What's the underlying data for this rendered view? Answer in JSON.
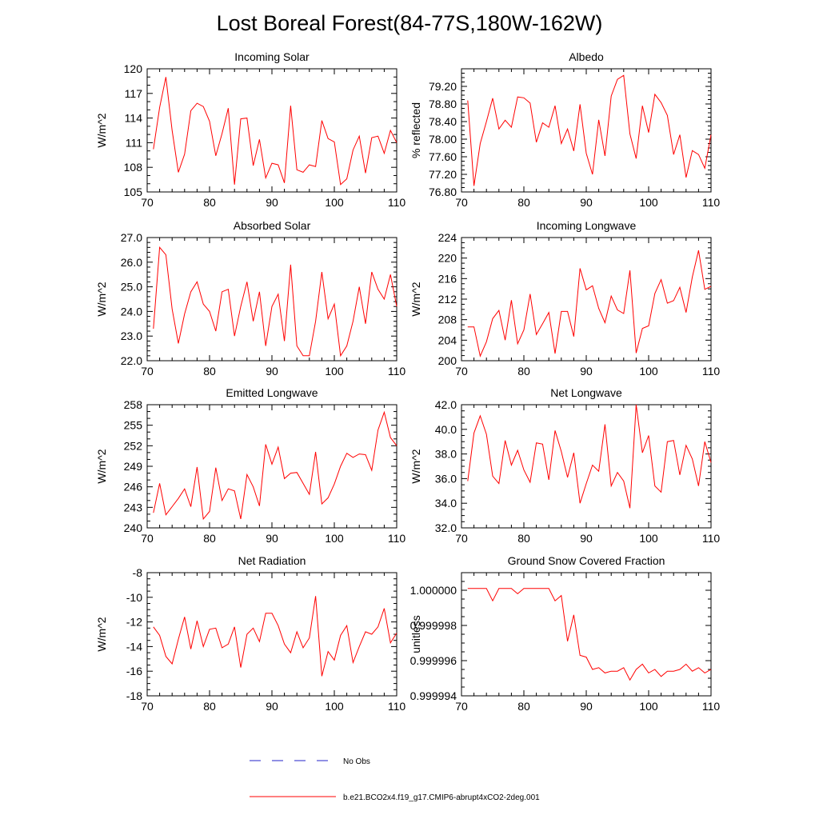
{
  "title": "Lost Boreal Forest(84-77S,180W-162W)",
  "colors": {
    "model": "#ff0000",
    "obs": "#2020c8",
    "axis": "#000000"
  },
  "legend": [
    {
      "label": "No Obs",
      "style": "dashed",
      "color": "#2020c8"
    },
    {
      "label": "b.e21.BCO2x4.f19_g17.CMIP6-abrupt4xCO2-2deg.001",
      "style": "solid",
      "color": "#ff0000"
    }
  ],
  "chart_data": [
    {
      "type": "line",
      "title": "Incoming Solar",
      "xlabel": "",
      "ylabel": "W/m^2",
      "xlim": [
        70,
        110
      ],
      "ylim": [
        105,
        120
      ],
      "xticks": [
        70,
        80,
        90,
        100,
        110
      ],
      "xtick_labels": [
        "70",
        "80",
        "90",
        "100",
        "110"
      ],
      "yticks": [
        105,
        108,
        111,
        114,
        117,
        120
      ],
      "ytick_labels": [
        "105",
        "108",
        "111",
        "114",
        "117",
        "120"
      ],
      "yminor": 1,
      "series": [
        {
          "name": "b.e21.BCO2x4.f19_g17.CMIP6-abrupt4xCO2-2deg.001",
          "x": [
            71,
            72,
            73,
            74,
            75,
            76,
            77,
            78,
            79,
            80,
            81,
            82,
            83,
            84,
            85,
            86,
            87,
            88,
            89,
            90,
            91,
            92,
            93,
            94,
            95,
            96,
            97,
            98,
            99,
            100,
            101,
            102,
            103,
            104,
            105,
            106,
            107,
            108,
            109,
            110
          ],
          "values": [
            110.2,
            115.3,
            119.0,
            112.5,
            107.4,
            109.6,
            114.9,
            115.8,
            115.4,
            113.6,
            109.4,
            112.1,
            115.2,
            105.9,
            113.9,
            114.0,
            108.2,
            111.4,
            106.7,
            108.5,
            108.3,
            106.1,
            115.5,
            107.7,
            107.4,
            108.3,
            108.1,
            113.7,
            111.5,
            111.1,
            105.9,
            106.6,
            110.1,
            111.8,
            107.3,
            111.6,
            111.8,
            109.7,
            112.5,
            111.0
          ]
        }
      ]
    },
    {
      "type": "line",
      "title": "Albedo",
      "xlabel": "",
      "ylabel": "% reflected",
      "xlim": [
        70,
        110
      ],
      "ylim": [
        76.8,
        79.6
      ],
      "xticks": [
        70,
        80,
        90,
        100,
        110
      ],
      "xtick_labels": [
        "70",
        "80",
        "90",
        "100",
        "110"
      ],
      "yticks": [
        76.8,
        77.2,
        77.6,
        78.0,
        78.4,
        78.8,
        79.2
      ],
      "ytick_labels": [
        "76.80",
        "77.20",
        "77.60",
        "78.00",
        "78.40",
        "78.80",
        "79.20"
      ],
      "yminor": 0.1,
      "series": [
        {
          "name": "b.e21.BCO2x4.f19_g17.CMIP6-abrupt4xCO2-2deg.001",
          "x": [
            71,
            72,
            73,
            74,
            75,
            76,
            77,
            78,
            79,
            80,
            81,
            82,
            83,
            84,
            85,
            86,
            87,
            88,
            89,
            90,
            91,
            92,
            93,
            94,
            95,
            96,
            97,
            98,
            99,
            100,
            101,
            102,
            103,
            104,
            105,
            106,
            107,
            108,
            109,
            110
          ],
          "values": [
            78.88,
            76.94,
            77.9,
            78.4,
            78.93,
            78.23,
            78.43,
            78.27,
            78.96,
            78.94,
            78.82,
            77.93,
            78.37,
            78.27,
            78.76,
            77.9,
            78.23,
            77.73,
            78.79,
            77.68,
            77.2,
            78.44,
            77.62,
            78.98,
            79.36,
            79.45,
            78.12,
            77.56,
            78.76,
            78.15,
            79.02,
            78.83,
            78.54,
            77.65,
            78.1,
            77.13,
            77.74,
            77.65,
            77.34,
            78.1
          ]
        }
      ]
    },
    {
      "type": "line",
      "title": "Absorbed Solar",
      "xlabel": "",
      "ylabel": "W/m^2",
      "xlim": [
        70,
        110
      ],
      "ylim": [
        22.0,
        27.0
      ],
      "xticks": [
        70,
        80,
        90,
        100,
        110
      ],
      "xtick_labels": [
        "70",
        "80",
        "90",
        "100",
        "110"
      ],
      "yticks": [
        22,
        23,
        24,
        25,
        26,
        27
      ],
      "ytick_labels": [
        "22.0",
        "23.0",
        "24.0",
        "25.0",
        "26.0",
        "27.0"
      ],
      "yminor": 0.2,
      "series": [
        {
          "name": "b.e21.BCO2x4.f19_g17.CMIP6-abrupt4xCO2-2deg.001",
          "x": [
            71,
            72,
            73,
            74,
            75,
            76,
            77,
            78,
            79,
            80,
            81,
            82,
            83,
            84,
            85,
            86,
            87,
            88,
            89,
            90,
            91,
            92,
            93,
            94,
            95,
            96,
            97,
            98,
            99,
            100,
            101,
            102,
            103,
            104,
            105,
            106,
            107,
            108,
            109,
            110
          ],
          "values": [
            23.3,
            26.6,
            26.3,
            24.1,
            22.7,
            23.9,
            24.8,
            25.2,
            24.3,
            24.0,
            23.2,
            24.8,
            24.9,
            23.0,
            24.2,
            25.2,
            23.6,
            24.8,
            22.6,
            24.2,
            24.7,
            22.8,
            25.9,
            22.6,
            22.2,
            22.2,
            23.6,
            25.6,
            23.7,
            24.3,
            22.2,
            22.6,
            23.6,
            25.0,
            23.5,
            25.6,
            24.9,
            24.5,
            25.5,
            24.2
          ]
        }
      ]
    },
    {
      "type": "line",
      "title": "Incoming Longwave",
      "xlabel": "",
      "ylabel": "W/m^2",
      "xlim": [
        70,
        110
      ],
      "ylim": [
        200,
        224
      ],
      "xticks": [
        70,
        80,
        90,
        100,
        110
      ],
      "xtick_labels": [
        "70",
        "80",
        "90",
        "100",
        "110"
      ],
      "yticks": [
        200,
        204,
        208,
        212,
        216,
        220,
        224
      ],
      "ytick_labels": [
        "200",
        "204",
        "208",
        "212",
        "216",
        "220",
        "224"
      ],
      "yminor": 1,
      "series": [
        {
          "name": "b.e21.BCO2x4.f19_g17.CMIP6-abrupt4xCO2-2deg.001",
          "x": [
            71,
            72,
            73,
            74,
            75,
            76,
            77,
            78,
            79,
            80,
            81,
            82,
            83,
            84,
            85,
            86,
            87,
            88,
            89,
            90,
            91,
            92,
            93,
            94,
            95,
            96,
            97,
            98,
            99,
            100,
            101,
            102,
            103,
            104,
            105,
            106,
            107,
            108,
            109,
            110
          ],
          "values": [
            206.6,
            206.6,
            200.9,
            203.7,
            208.2,
            209.8,
            204.0,
            211.8,
            203.3,
            206.0,
            213.0,
            205.1,
            207.2,
            209.4,
            201.4,
            209.6,
            209.6,
            204.7,
            218.0,
            213.8,
            214.6,
            210.2,
            207.4,
            212.6,
            209.9,
            209.2,
            217.6,
            201.5,
            206.3,
            206.8,
            213.1,
            215.8,
            211.2,
            211.7,
            214.3,
            209.4,
            216.3,
            221.5,
            213.9,
            214.5
          ]
        }
      ]
    },
    {
      "type": "line",
      "title": "Emitted Longwave",
      "xlabel": "",
      "ylabel": "W/m^2",
      "xlim": [
        70,
        110
      ],
      "ylim": [
        240,
        258
      ],
      "xticks": [
        70,
        80,
        90,
        100,
        110
      ],
      "xtick_labels": [
        "70",
        "80",
        "90",
        "100",
        "110"
      ],
      "yticks": [
        240,
        243,
        246,
        249,
        252,
        255,
        258
      ],
      "ytick_labels": [
        "240",
        "243",
        "246",
        "249",
        "252",
        "255",
        "258"
      ],
      "yminor": 1,
      "series": [
        {
          "name": "b.e21.BCO2x4.f19_g17.CMIP6-abrupt4xCO2-2deg.001",
          "x": [
            71,
            72,
            73,
            74,
            75,
            76,
            77,
            78,
            79,
            80,
            81,
            82,
            83,
            84,
            85,
            86,
            87,
            88,
            89,
            90,
            91,
            92,
            93,
            94,
            95,
            96,
            97,
            98,
            99,
            100,
            101,
            102,
            103,
            104,
            105,
            106,
            107,
            108,
            109,
            110
          ],
          "values": [
            242.2,
            246.5,
            241.9,
            243.1,
            244.3,
            245.7,
            243.1,
            248.9,
            241.3,
            242.4,
            248.8,
            244.0,
            245.7,
            245.4,
            241.3,
            247.8,
            246.0,
            243.2,
            252.2,
            249.3,
            251.8,
            247.2,
            248.0,
            248.1,
            246.5,
            244.9,
            251.1,
            243.5,
            244.4,
            246.4,
            249.0,
            250.9,
            250.3,
            250.8,
            250.7,
            248.4,
            254.3,
            256.9,
            253.2,
            252.0
          ]
        }
      ]
    },
    {
      "type": "line",
      "title": "Net Longwave",
      "xlabel": "",
      "ylabel": "W/m^2",
      "xlim": [
        70,
        110
      ],
      "ylim": [
        32.0,
        42.0
      ],
      "xticks": [
        70,
        80,
        90,
        100,
        110
      ],
      "xtick_labels": [
        "70",
        "80",
        "90",
        "100",
        "110"
      ],
      "yticks": [
        32,
        34,
        36,
        38,
        40,
        42
      ],
      "ytick_labels": [
        "32.0",
        "34.0",
        "36.0",
        "38.0",
        "40.0",
        "42.0"
      ],
      "yminor": 0.5,
      "series": [
        {
          "name": "b.e21.BCO2x4.f19_g17.CMIP6-abrupt4xCO2-2deg.001",
          "x": [
            71,
            72,
            73,
            74,
            75,
            76,
            77,
            78,
            79,
            80,
            81,
            82,
            83,
            84,
            85,
            86,
            87,
            88,
            89,
            90,
            91,
            92,
            93,
            94,
            95,
            96,
            97,
            98,
            99,
            100,
            101,
            102,
            103,
            104,
            105,
            106,
            107,
            108,
            109,
            110
          ],
          "values": [
            35.8,
            39.7,
            41.1,
            39.6,
            36.2,
            35.6,
            39.1,
            37.1,
            38.3,
            36.7,
            35.7,
            38.9,
            38.8,
            35.9,
            39.9,
            38.2,
            36.1,
            38.1,
            34.0,
            35.6,
            37.1,
            36.6,
            40.4,
            35.4,
            36.5,
            35.8,
            33.6,
            42.0,
            38.1,
            39.5,
            35.4,
            34.9,
            39.0,
            39.1,
            36.3,
            38.7,
            37.6,
            35.4,
            39.0,
            37.3
          ]
        }
      ]
    },
    {
      "type": "line",
      "title": "Net Radiation",
      "xlabel": "",
      "ylabel": "W/m^2",
      "xlim": [
        70,
        110
      ],
      "ylim": [
        -18,
        -8
      ],
      "xticks": [
        70,
        80,
        90,
        100,
        110
      ],
      "xtick_labels": [
        "70",
        "80",
        "90",
        "100",
        "110"
      ],
      "yticks": [
        -18,
        -16,
        -14,
        -12,
        -10,
        -8
      ],
      "ytick_labels": [
        "-18",
        "-16",
        "-14",
        "-12",
        "-10",
        "-8"
      ],
      "yminor": 0.5,
      "series": [
        {
          "name": "b.e21.BCO2x4.f19_g17.CMIP6-abrupt4xCO2-2deg.001",
          "x": [
            71,
            72,
            73,
            74,
            75,
            76,
            77,
            78,
            79,
            80,
            81,
            82,
            83,
            84,
            85,
            86,
            87,
            88,
            89,
            90,
            91,
            92,
            93,
            94,
            95,
            96,
            97,
            98,
            99,
            100,
            101,
            102,
            103,
            104,
            105,
            106,
            107,
            108,
            109,
            110
          ],
          "values": [
            -12.4,
            -13.1,
            -14.8,
            -15.4,
            -13.4,
            -11.6,
            -14.2,
            -11.9,
            -14.0,
            -12.6,
            -12.5,
            -14.1,
            -13.8,
            -12.4,
            -15.7,
            -13.0,
            -12.5,
            -13.6,
            -11.3,
            -11.3,
            -12.3,
            -13.8,
            -14.5,
            -12.8,
            -14.1,
            -13.3,
            -9.9,
            -16.4,
            -14.4,
            -15.1,
            -13.1,
            -12.3,
            -15.3,
            -14.0,
            -12.8,
            -13.0,
            -12.4,
            -10.9,
            -13.7,
            -12.9
          ]
        }
      ]
    },
    {
      "type": "line",
      "title": "Ground Snow Covered Fraction",
      "xlabel": "",
      "ylabel": "unitless",
      "xlim": [
        70,
        110
      ],
      "ylim": [
        0.999994,
        1.000001
      ],
      "xticks": [
        70,
        80,
        90,
        100,
        110
      ],
      "xtick_labels": [
        "70",
        "80",
        "90",
        "100",
        "110"
      ],
      "yticks": [
        0.999994,
        0.999996,
        0.999998,
        1.0
      ],
      "ytick_labels": [
        "0.999994",
        "0.999996",
        "0.999998",
        "1.000000"
      ],
      "yminor": 5e-07,
      "series": [
        {
          "name": "b.e21.BCO2x4.f19_g17.CMIP6-abrupt4xCO2-2deg.001",
          "x": [
            71,
            72,
            73,
            74,
            75,
            76,
            77,
            78,
            79,
            80,
            81,
            82,
            83,
            84,
            85,
            86,
            87,
            88,
            89,
            90,
            91,
            92,
            93,
            94,
            95,
            96,
            97,
            98,
            99,
            100,
            101,
            102,
            103,
            104,
            105,
            106,
            107,
            108,
            109,
            110
          ],
          "values": [
            1.0000001,
            1.0000001,
            1.0000001,
            1.0000001,
            0.9999994,
            1.0000001,
            1.0000001,
            1.0000001,
            0.9999998,
            1.0000001,
            1.0000001,
            1.0000001,
            1.0000001,
            1.0000001,
            0.9999994,
            0.9999997,
            0.9999971,
            0.9999986,
            0.9999963,
            0.9999962,
            0.9999955,
            0.9999956,
            0.9999953,
            0.9999954,
            0.9999954,
            0.9999956,
            0.9999949,
            0.9999955,
            0.9999958,
            0.9999953,
            0.9999955,
            0.9999951,
            0.9999954,
            0.9999954,
            0.9999955,
            0.9999958,
            0.9999954,
            0.9999956,
            0.9999953,
            0.9999955
          ]
        }
      ]
    }
  ]
}
